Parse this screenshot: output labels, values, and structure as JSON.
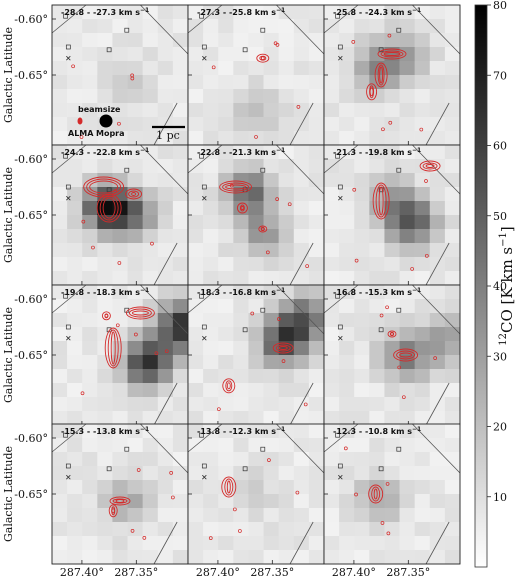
{
  "chart_data": {
    "type": "heatmap",
    "description_units": "12CO channel maps (grayscale, Mopra) with ALMA contours (red)",
    "ylabel": "Galactic Latitude",
    "xlabel": "Galactic Longitude",
    "xticks": [
      "287.40°",
      "287.35°"
    ],
    "yticks": [
      "-0.60°",
      "-0.65°"
    ],
    "colorbar": {
      "label_pre": "12",
      "label_main": "CO [K km s",
      "label_exp": "−1",
      "label_end": "]",
      "min": 0,
      "max": 80,
      "ticks": [
        10,
        20,
        30,
        40,
        50,
        60,
        70,
        80
      ]
    },
    "panel_unit": "km s",
    "panel_unit_exp": "−1",
    "panels": [
      {
        "range": "-28.8 - -27.3"
      },
      {
        "range": "-27.3 - -25.8"
      },
      {
        "range": "-25.8 - -24.3"
      },
      {
        "range": "-24.3 - -22.8"
      },
      {
        "range": "-22.8 - -21.3"
      },
      {
        "range": "-21.3 - -19.8"
      },
      {
        "range": "-19.8 - -18.3"
      },
      {
        "range": "-18.3 - -16.8"
      },
      {
        "range": "-16.8 - -15.3"
      },
      {
        "range": "-15.3 - -13.8"
      },
      {
        "range": "-13.8 - -12.3"
      },
      {
        "range": "-12.3 - -10.8"
      }
    ],
    "beams": {
      "label": "beamsize",
      "alma": "ALMA",
      "mopra": "Mopra"
    },
    "scalebar": "1 pc"
  }
}
